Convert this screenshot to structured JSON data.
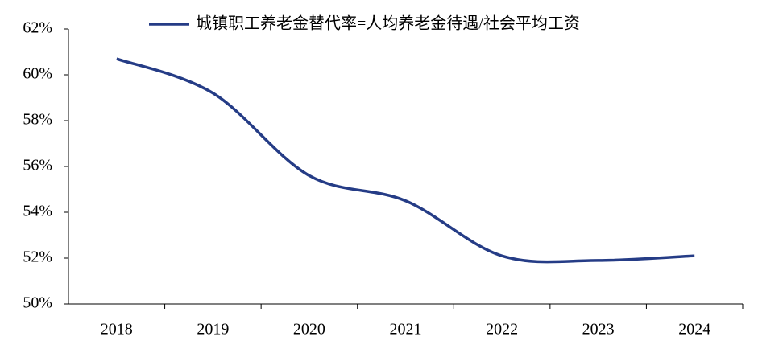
{
  "chart_data": {
    "type": "line",
    "categories": [
      "2018",
      "2019",
      "2020",
      "2021",
      "2022",
      "2023",
      "2024"
    ],
    "series": [
      {
        "name": "城镇职工养老金替代率=人均养老金待遇/社会平均工资",
        "color": "#253c86",
        "values": [
          60.7,
          59.2,
          55.6,
          54.5,
          52.1,
          51.9,
          52.1
        ]
      }
    ],
    "ylim": [
      50,
      62
    ],
    "yticks": [
      {
        "value": 50,
        "label": "50%"
      },
      {
        "value": 52,
        "label": "52%"
      },
      {
        "value": 54,
        "label": "54%"
      },
      {
        "value": 56,
        "label": "56%"
      },
      {
        "value": 58,
        "label": "58%"
      },
      {
        "value": 60,
        "label": "60%"
      },
      {
        "value": 62,
        "label": "62%"
      }
    ],
    "grid": false,
    "legend": "top"
  }
}
